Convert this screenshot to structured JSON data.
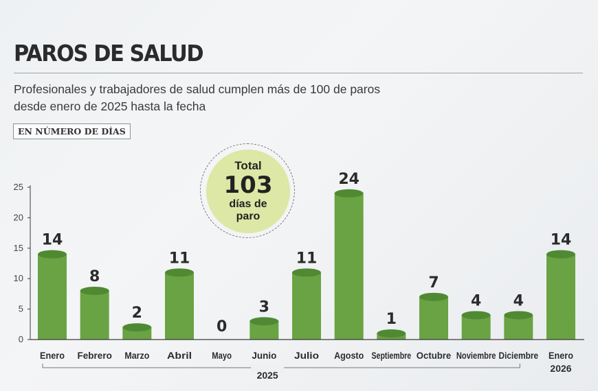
{
  "header": {
    "title": "PAROS DE SALUD",
    "subtitle": "Profesionales y trabajadores de salud cumplen más de 100 de paros desde enero de 2025 hasta la fecha",
    "unit_badge": "EN NÚMERO DE DÍAS"
  },
  "total": {
    "label": "Total",
    "value": "103",
    "unit": "días de paro"
  },
  "colors": {
    "bar": "#6aa343",
    "bar_top": "#4f8a33",
    "axis": "#3a3a3a",
    "text": "#2b2b2b"
  },
  "chart_data": {
    "type": "bar",
    "title": "PAROS DE SALUD",
    "ylabel": "",
    "xlabel": "",
    "ylim": [
      0,
      25
    ],
    "yticks": [
      0,
      5,
      10,
      15,
      20,
      25
    ],
    "categories": [
      {
        "label": "Enero",
        "sub": ""
      },
      {
        "label": "Febrero",
        "sub": ""
      },
      {
        "label": "Marzo",
        "sub": ""
      },
      {
        "label": "Abril",
        "sub": ""
      },
      {
        "label": "Mayo",
        "sub": ""
      },
      {
        "label": "Junio",
        "sub": ""
      },
      {
        "label": "Julio",
        "sub": ""
      },
      {
        "label": "Agosto",
        "sub": ""
      },
      {
        "label": "Septiembre",
        "sub": ""
      },
      {
        "label": "Octubre",
        "sub": ""
      },
      {
        "label": "Noviembre",
        "sub": ""
      },
      {
        "label": "Diciembre",
        "sub": ""
      },
      {
        "label": "Enero",
        "sub": "2026"
      }
    ],
    "values": [
      14,
      8,
      2,
      11,
      0,
      3,
      11,
      24,
      1,
      7,
      4,
      4,
      14
    ],
    "year_group_label": "2025"
  }
}
